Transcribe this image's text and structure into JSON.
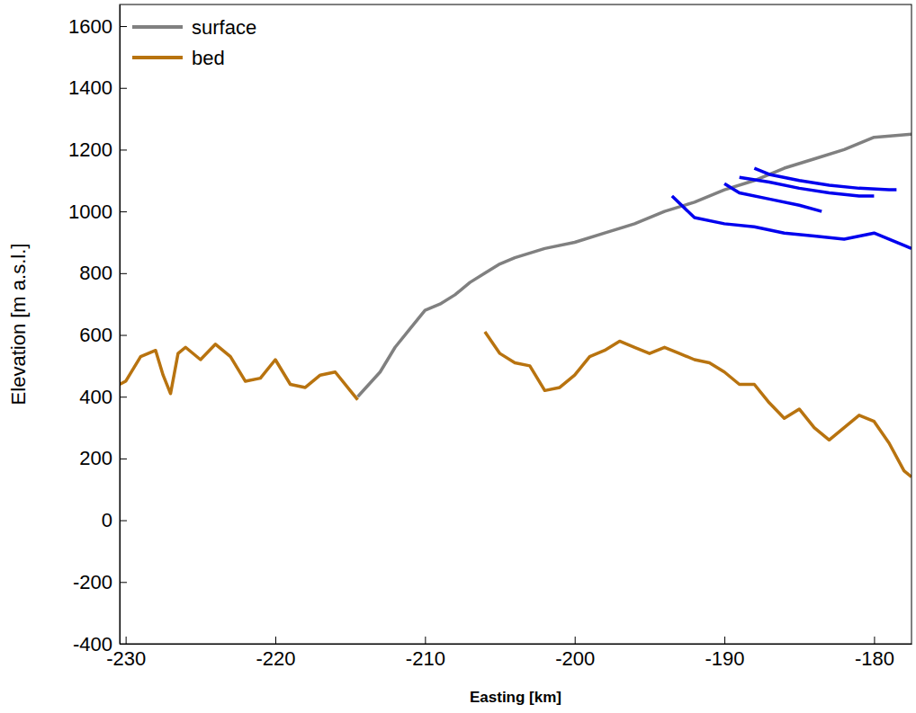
{
  "chart_data": {
    "type": "line",
    "x_label": "Easting [km]",
    "y_label": "Elevation [m a.s.l.]",
    "xlim": [
      -230.4,
      -177.5
    ],
    "ylim": [
      -400,
      1670
    ],
    "xticks": [
      -230,
      -220,
      -210,
      -200,
      -190,
      -180
    ],
    "yticks": [
      -400,
      -200,
      0,
      200,
      400,
      600,
      800,
      1000,
      1200,
      1400,
      1600
    ],
    "legend": "upper left",
    "series": [
      {
        "name": "surface",
        "color": "#808080",
        "x": [
          -214.5,
          -213,
          -212,
          -211,
          -210,
          -209,
          -208,
          -207,
          -206,
          -205,
          -204,
          -202,
          -200,
          -198,
          -196,
          -194,
          -192,
          -190,
          -188,
          -186,
          -184,
          -182,
          -180,
          -177.5
        ],
        "values": [
          400,
          480,
          560,
          620,
          680,
          700,
          730,
          770,
          800,
          830,
          850,
          880,
          900,
          930,
          960,
          1000,
          1030,
          1070,
          1100,
          1140,
          1170,
          1200,
          1240,
          1250
        ]
      },
      {
        "name": "bed",
        "color": "#b8730f",
        "x": [
          -230.4,
          -230,
          -229,
          -228,
          -227.5,
          -227,
          -226.5,
          -226,
          -225,
          -224,
          -223,
          -222,
          -221,
          -220,
          -219,
          -218,
          -217,
          -216,
          -215,
          -214.5,
          -210,
          -206,
          -205,
          -204,
          -203,
          -202,
          -201,
          -200,
          -199,
          -198,
          -197,
          -196,
          -195,
          -194,
          -193,
          -192,
          -191,
          -190,
          -189,
          -188,
          -187,
          -186,
          -185,
          -184,
          -183,
          -182,
          -181,
          -180,
          -179,
          -178,
          -177.5
        ],
        "values": [
          440,
          450,
          530,
          550,
          470,
          410,
          540,
          560,
          520,
          570,
          530,
          450,
          460,
          520,
          440,
          430,
          470,
          480,
          420,
          390,
          null,
          610,
          540,
          510,
          500,
          420,
          430,
          470,
          530,
          550,
          580,
          560,
          540,
          560,
          540,
          520,
          510,
          480,
          440,
          440,
          380,
          330,
          360,
          300,
          260,
          300,
          340,
          320,
          250,
          160,
          140
        ]
      },
      {
        "color": "#0000ee",
        "x": [
          -188,
          -187,
          -185,
          -183,
          -181,
          -179,
          -178.5
        ],
        "values": [
          1140,
          1120,
          1100,
          1085,
          1075,
          1070,
          1070
        ]
      },
      {
        "color": "#0000ee",
        "x": [
          -189,
          -187,
          -185,
          -183,
          -181,
          -180
        ],
        "values": [
          1110,
          1095,
          1075,
          1060,
          1050,
          1050
        ]
      },
      {
        "color": "#0000ee",
        "x": [
          -190,
          -189,
          -187,
          -185,
          -183.5
        ],
        "values": [
          1090,
          1060,
          1040,
          1020,
          1000
        ]
      },
      {
        "color": "#0000ee",
        "x": [
          -193.5,
          -192,
          -190,
          -188,
          -186,
          -184,
          -182,
          -180,
          -178,
          -177.5
        ],
        "values": [
          1050,
          980,
          960,
          950,
          930,
          920,
          910,
          930,
          890,
          880
        ]
      }
    ]
  }
}
